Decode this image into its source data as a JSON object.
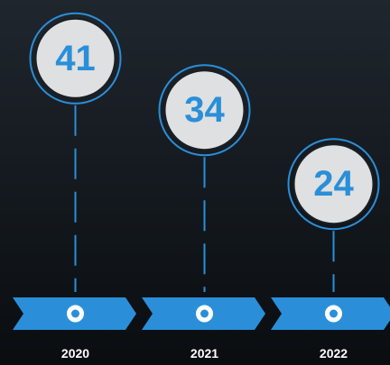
{
  "chart_data": {
    "type": "lollipop",
    "categories": [
      "2020",
      "2021",
      "2022"
    ],
    "values": [
      41,
      34,
      24
    ],
    "color": "#2a8fd8"
  }
}
